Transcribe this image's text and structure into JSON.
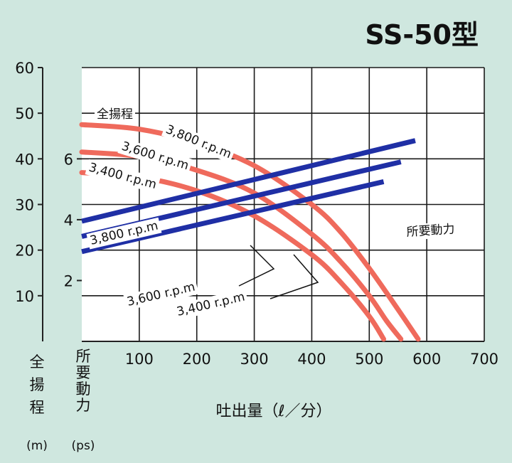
{
  "chart_data": {
    "type": "line",
    "title": "SS-50型",
    "xlabel": "吐出量（ℓ／分）",
    "xlim": [
      0,
      700
    ],
    "x_ticks": [
      "100",
      "200",
      "300",
      "400",
      "500",
      "600",
      "700"
    ],
    "head_axis": {
      "label_chars": [
        "全",
        "揚",
        "程"
      ],
      "unit": "(m)",
      "ylim": [
        0,
        60
      ],
      "ticks": [
        "10",
        "20",
        "30",
        "40",
        "50",
        "60"
      ]
    },
    "power_axis": {
      "label_chars": [
        "所",
        "要",
        "動",
        "力"
      ],
      "unit": "(ps)",
      "ylim": [
        0,
        9
      ],
      "ticks": [
        "2",
        "4",
        "6"
      ]
    },
    "grid": true,
    "colors": {
      "head": "#ef6a5c",
      "power": "#1f2fa5",
      "background": "#cfe7df",
      "plot": "#ffffff"
    },
    "head_label": "全揚程",
    "power_label": "所要動力",
    "series": [
      {
        "name": "3,800 r.p.m",
        "kind": "head",
        "points": [
          [
            0,
            47.5
          ],
          [
            100,
            46.5
          ],
          [
            200,
            43.5
          ],
          [
            300,
            38.5
          ],
          [
            400,
            30
          ],
          [
            450,
            24
          ],
          [
            500,
            16
          ],
          [
            550,
            7
          ],
          [
            585,
            0.5
          ]
        ]
      },
      {
        "name": "3,600 r.p.m",
        "kind": "head",
        "points": [
          [
            0,
            41.5
          ],
          [
            100,
            40.5
          ],
          [
            200,
            37.5
          ],
          [
            300,
            32.5
          ],
          [
            400,
            23.5
          ],
          [
            450,
            17.5
          ],
          [
            500,
            10
          ],
          [
            530,
            4.5
          ],
          [
            555,
            0.5
          ]
        ]
      },
      {
        "name": "3,400 r.p.m",
        "kind": "head",
        "points": [
          [
            0,
            37
          ],
          [
            100,
            36
          ],
          [
            200,
            33
          ],
          [
            300,
            27.5
          ],
          [
            400,
            19
          ],
          [
            450,
            13
          ],
          [
            500,
            5.5
          ],
          [
            525,
            0.5
          ]
        ]
      },
      {
        "name": "3,800 r.p.m",
        "kind": "power",
        "points": [
          [
            0,
            3.95
          ],
          [
            580,
            6.6
          ]
        ]
      },
      {
        "name": "3,600 r.p.m",
        "kind": "power",
        "points": [
          [
            0,
            3.45
          ],
          [
            555,
            5.9
          ]
        ]
      },
      {
        "name": "3,400 r.p.m",
        "kind": "power",
        "points": [
          [
            0,
            2.95
          ],
          [
            525,
            5.25
          ]
        ]
      }
    ]
  }
}
